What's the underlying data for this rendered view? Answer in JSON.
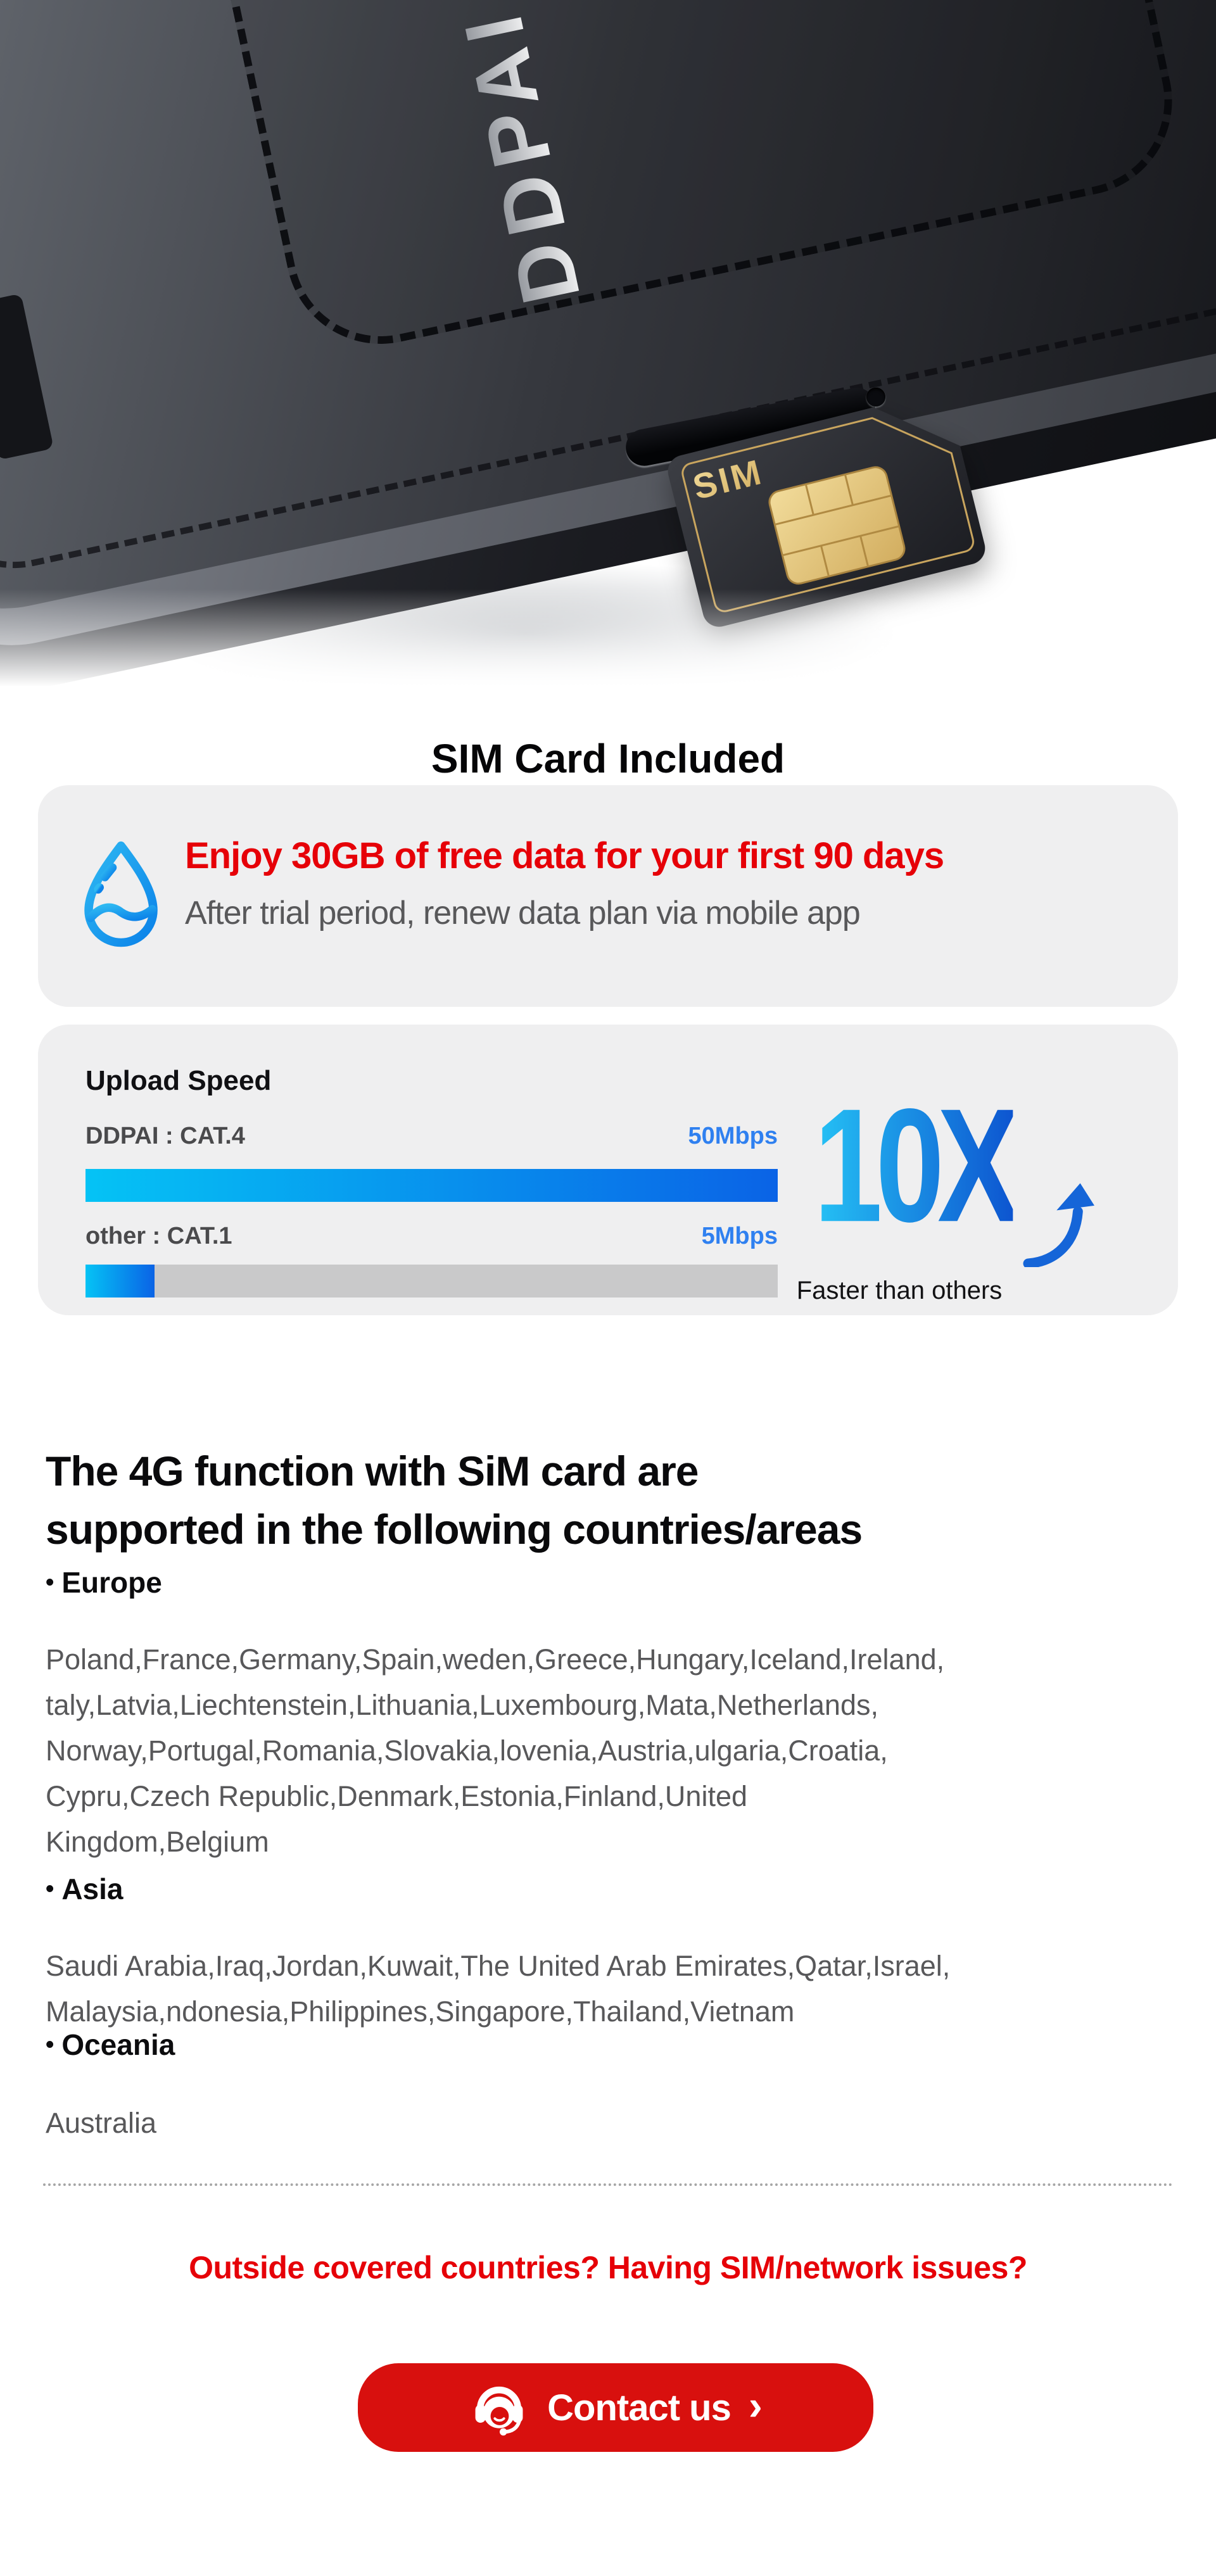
{
  "hero": {
    "device_logo": "DDPAI",
    "sim_card_label": "SIM"
  },
  "headline": "SIM Card Included",
  "offer": {
    "title": "Enjoy 30GB of free data for your first 90 days",
    "subtitle": "After trial period, renew data plan via mobile app",
    "icon": "water-drop-icon"
  },
  "speed": {
    "title": "Upload Speed",
    "rows": [
      {
        "label": "DDPAI : CAT.4",
        "value": "50Mbps",
        "pct": 100
      },
      {
        "label": "other : CAT.1",
        "value": "5Mbps",
        "pct": 10
      }
    ],
    "badge": {
      "multiplier": "10X",
      "caption": "Faster than others",
      "icon": "up-arrow-icon"
    }
  },
  "chart_data": {
    "type": "bar",
    "orientation": "horizontal",
    "title": "Upload Speed",
    "categories": [
      "DDPAI : CAT.4",
      "other : CAT.1"
    ],
    "values": [
      50,
      5
    ],
    "unit": "Mbps",
    "value_labels": [
      "50Mbps",
      "5Mbps"
    ],
    "annotation": "10X Faster than others",
    "xlim": [
      0,
      50
    ],
    "grid": false,
    "legend": false
  },
  "coverage": {
    "heading": "The 4G function with SiM card are\nsupported in the following countries/areas",
    "bullet": "•",
    "regions": [
      {
        "label": "Europe",
        "countries": "Poland,France,Germany,Spain,weden,Greece,Hungary,Iceland,Ireland,\ntaly,Latvia,Liechtenstein,Lithuania,Luxembourg,Mata,Netherlands,\nNorway,Portugal,Romania,Slovakia,lovenia,Austria,ulgaria,Croatia,\nCypru,Czech Republic,Denmark,Estonia,Finland,United\nKingdom,Belgium"
      },
      {
        "label": "Asia",
        "countries": "Saudi Arabia,Iraq,Jordan,Kuwait,The United Arab Emirates,Qatar,Israel,\nMalaysia,ndonesia,Philippines,Singapore,Thailand,Vietnam"
      },
      {
        "label": "Oceania",
        "countries": "Australia"
      }
    ]
  },
  "support": {
    "question": "Outside covered countries? Having SIM/network issues?",
    "button_label": "Contact us",
    "chevron": "›",
    "icon": "headset-agent-icon"
  },
  "colors": {
    "box_bg": "#EFEFF0",
    "red_accent": "#E60008",
    "button_red": "#D8100E",
    "blue_label": "#2F80F0",
    "bar_grad_a": "#05C3F5",
    "bar_grad_b": "#0A63E6",
    "gray_bar": "#C9C9CA",
    "tenx_a": "#25C2F5",
    "tenx_b": "#0D55D0",
    "drop_a": "#2FB9F2",
    "drop_b": "#0B82E9",
    "text_dark": "#4A4A4C",
    "text_gray": "#58585A",
    "heading_black": "#0A0A0C"
  }
}
